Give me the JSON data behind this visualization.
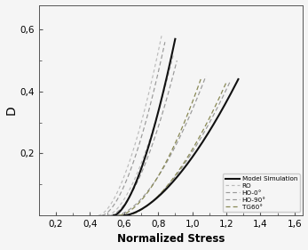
{
  "xlabel": "Normalized Stress",
  "ylabel": "D",
  "xlim": [
    0.1,
    1.65
  ],
  "ylim": [
    0.0,
    0.68
  ],
  "xticks": [
    0.2,
    0.4,
    0.6,
    0.8,
    1.0,
    1.2,
    1.4,
    1.6
  ],
  "yticks": [
    0.2,
    0.4,
    0.6
  ],
  "legend_entries": [
    "Model Simulation",
    "RO",
    "HO-0°",
    "HO-90°",
    "TG60°"
  ],
  "model_color": "#111111",
  "RO_color": "#bbbbbb",
  "HO0_color": "#999999",
  "HO90_color": "#999999",
  "TG60_color": "#888855",
  "background_color": "#f5f5f5"
}
